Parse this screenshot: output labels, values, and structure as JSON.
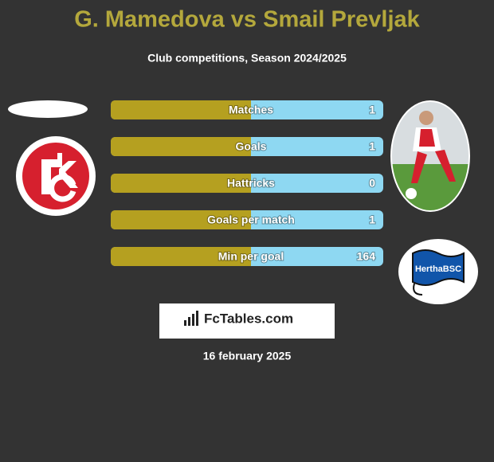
{
  "header": {
    "title": "G. Mamedova vs Smail Prevljak",
    "subtitle": "Club competitions, Season 2024/2025"
  },
  "rows": [
    {
      "label": "Matches",
      "value": "1"
    },
    {
      "label": "Goals",
      "value": "1"
    },
    {
      "label": "Hattricks",
      "value": "0"
    },
    {
      "label": "Goals per match",
      "value": "1"
    },
    {
      "label": "Min per goal",
      "value": "164"
    }
  ],
  "right_badge": "HerthaBSC",
  "brand": "FcTables.com",
  "date": "16 february 2025"
}
